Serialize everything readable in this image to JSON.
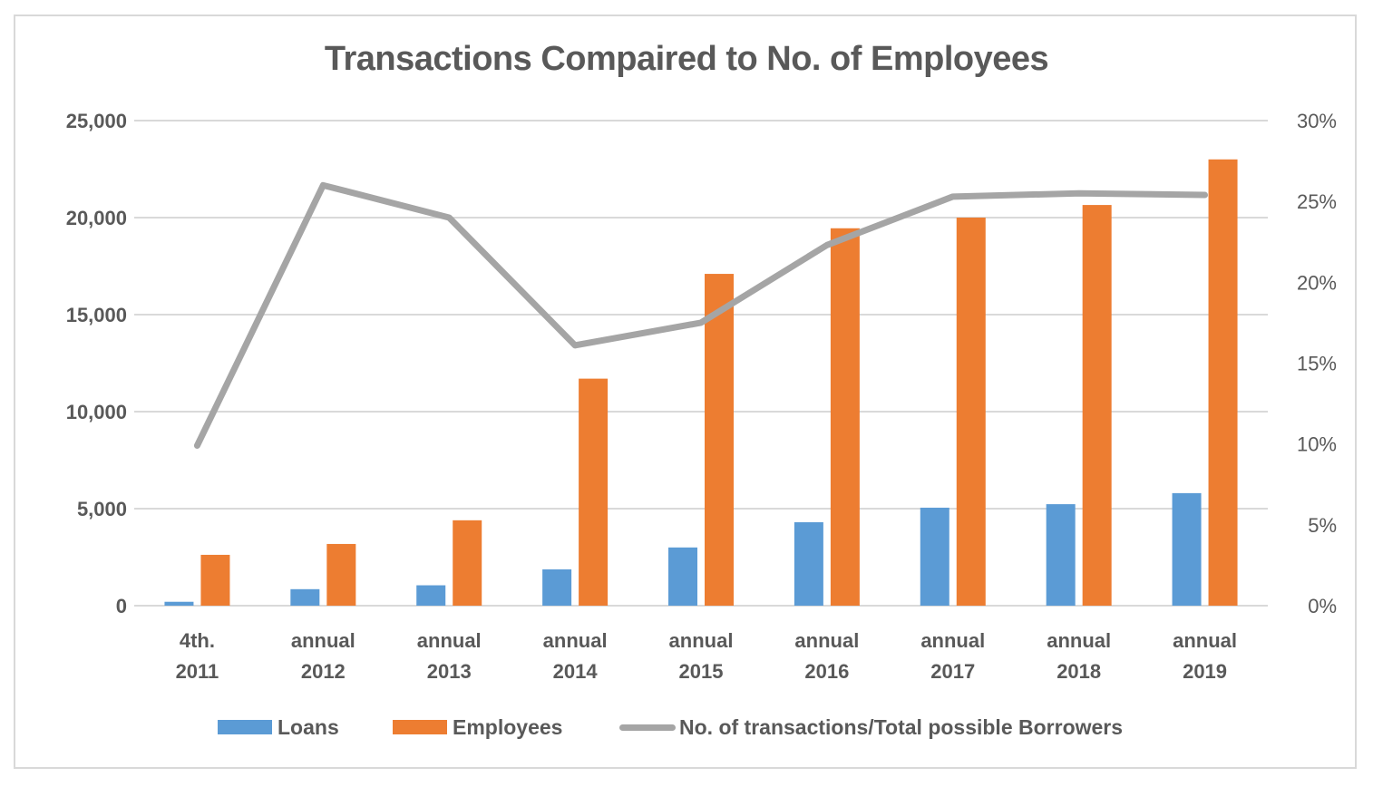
{
  "chart_data": {
    "type": "bar",
    "title": "Transactions Compaired to No. of Employees",
    "xlabel": "",
    "ylabel": "",
    "categories": [
      [
        "4th.",
        "2011"
      ],
      [
        "annual",
        "2012"
      ],
      [
        "annual",
        "2013"
      ],
      [
        "annual",
        "2014"
      ],
      [
        "annual",
        "2015"
      ],
      [
        "annual",
        "2016"
      ],
      [
        "annual",
        "2017"
      ],
      [
        "annual",
        "2018"
      ],
      [
        "annual",
        "2019"
      ]
    ],
    "series": [
      {
        "name": "Loans",
        "type": "bar",
        "axis": "left",
        "color": "#5b9bd5",
        "values": [
          200,
          850,
          1050,
          1870,
          3000,
          4300,
          5050,
          5230,
          5800
        ]
      },
      {
        "name": "Employees",
        "type": "bar",
        "axis": "left",
        "color": "#ed7d31",
        "values": [
          2620,
          3180,
          4400,
          11700,
          17100,
          19450,
          20000,
          20650,
          23000
        ]
      },
      {
        "name": "No. of transactions/Total possible Borrowers",
        "type": "line",
        "axis": "right",
        "color": "#a5a5a5",
        "values": [
          9.9,
          26.0,
          24.0,
          16.1,
          17.5,
          22.3,
          25.3,
          25.5,
          25.4
        ]
      }
    ],
    "ylim": [
      0,
      25000
    ],
    "y_ticks": [
      "0",
      "5,000",
      "10,000",
      "15,000",
      "20,000",
      "25,000"
    ],
    "y_tick_values": [
      0,
      5000,
      10000,
      15000,
      20000,
      25000
    ],
    "y2lim": [
      0,
      30
    ],
    "y2_ticks": [
      "0%",
      "5%",
      "10%",
      "15%",
      "20%",
      "25%",
      "30%"
    ],
    "y2_tick_values": [
      0,
      5,
      10,
      15,
      20,
      25,
      30
    ],
    "grid": true,
    "gridline_color": "#d9d9d9",
    "legend_position": "bottom",
    "legend": [
      "Loans",
      "Employees",
      "No. of transactions/Total possible Borrowers"
    ]
  }
}
